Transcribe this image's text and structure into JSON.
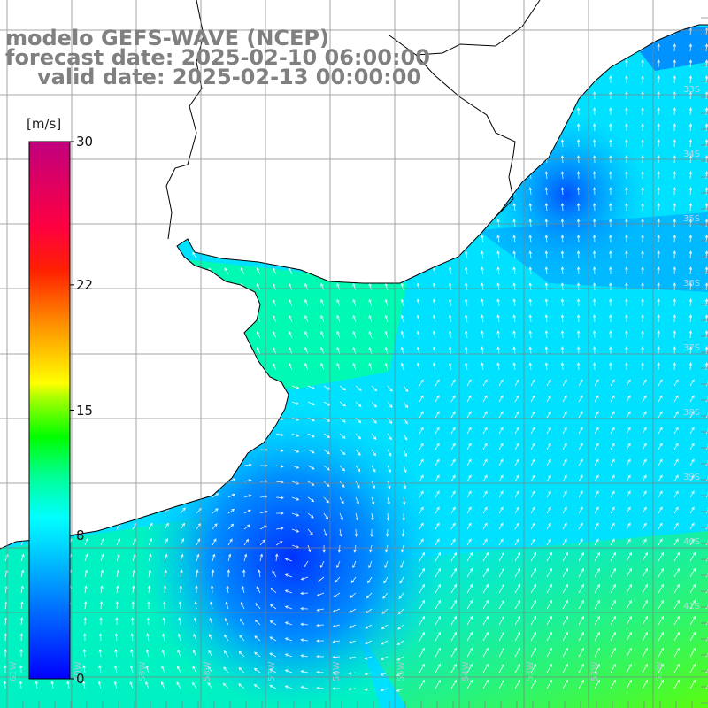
{
  "title": {
    "line1": "modelo GEFS-WAVE (NCEP)",
    "line2": "forecast date: 2025-02-10 06:00:00",
    "line3": "valid date: 2025-02-13 00:00:00"
  },
  "colorbar": {
    "unit": "[m/s]",
    "ticks": [
      {
        "label": "30",
        "value": 30
      },
      {
        "label": "22",
        "value": 22
      },
      {
        "label": "15",
        "value": 15
      },
      {
        "label": "8",
        "value": 8
      },
      {
        "label": "0",
        "value": 0
      }
    ],
    "min": 0,
    "max": 30,
    "colors": [
      "#0000ff",
      "#0060ff",
      "#00c0ff",
      "#00ffff",
      "#00ff80",
      "#00ff00",
      "#80ff00",
      "#ffff00",
      "#ffa000",
      "#ff4000",
      "#ff0000",
      "#ff0080",
      "#c0007f"
    ]
  },
  "map": {
    "lat_labels": [
      "33S",
      "34S",
      "35S",
      "36S",
      "37S",
      "38S",
      "39S",
      "40S",
      "41S"
    ],
    "lon_labels": [
      "61W",
      "60W",
      "59W",
      "58W",
      "57W",
      "56W",
      "55W",
      "54W",
      "53W",
      "52W",
      "51W"
    ],
    "land_color": "#ffffff",
    "coastline_color": "#000000",
    "grid_color": "#808080",
    "arrow_color": "#ffffff"
  }
}
